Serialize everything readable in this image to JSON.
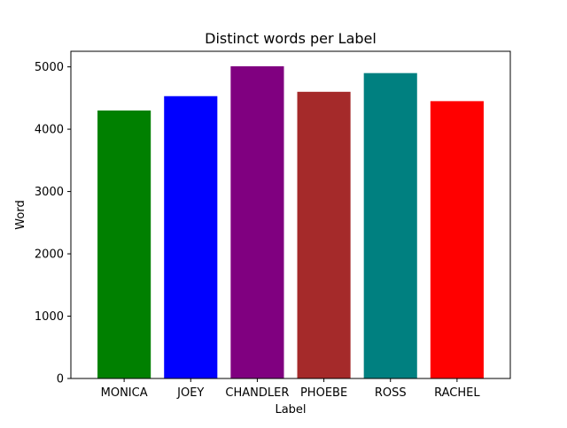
{
  "chart_data": {
    "type": "bar",
    "title": "Distinct words per Label",
    "xlabel": "Label",
    "ylabel": "Word",
    "categories": [
      "MONICA",
      "JOEY",
      "CHANDLER",
      "PHOEBE",
      "ROSS",
      "RACHEL"
    ],
    "values": [
      4300,
      4530,
      5010,
      4600,
      4900,
      4450
    ],
    "colors": [
      "#008000",
      "#0000ff",
      "#800080",
      "#a52a2a",
      "#008080",
      "#ff0000"
    ],
    "ylim": [
      0,
      5250
    ],
    "yticks": [
      0,
      1000,
      2000,
      3000,
      4000,
      5000
    ],
    "ytick_labels": [
      "0",
      "1000",
      "2000",
      "3000",
      "4000",
      "5000"
    ],
    "grid": false,
    "legend": "none"
  }
}
